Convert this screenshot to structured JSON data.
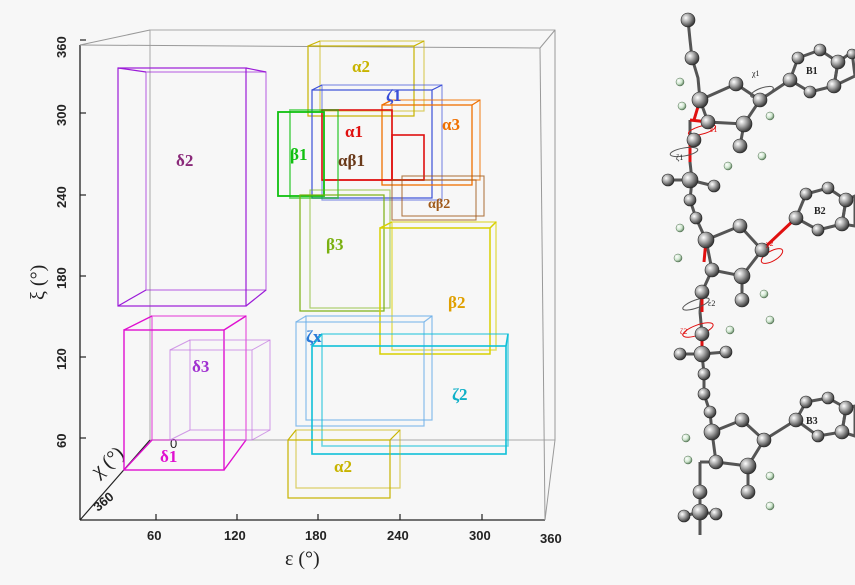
{
  "plot": {
    "x_axis_label": "ε (°)",
    "y_axis_label": "ξ (°)",
    "z_axis_label": "χ (°)",
    "x_ticks": [
      "60",
      "120",
      "180",
      "240",
      "300",
      "360"
    ],
    "y_ticks": [
      "60",
      "120",
      "180",
      "240",
      "300",
      "360"
    ],
    "z_ticks": [
      "0",
      "360"
    ]
  },
  "regions": [
    {
      "label": "α2",
      "color": "#c8b400"
    },
    {
      "label": "ζ1",
      "color": "#3a4fd8"
    },
    {
      "label": "α1",
      "color": "#e01010"
    },
    {
      "label": "α3",
      "color": "#f07000"
    },
    {
      "label": "αβ1",
      "color": "#6a3a1a"
    },
    {
      "label": "β1",
      "color": "#10b010"
    },
    {
      "label": "δ2",
      "color": "#9b1bd8"
    },
    {
      "label": "αβ2",
      "color": "#a05a1a"
    },
    {
      "label": "β3",
      "color": "#7ab010"
    },
    {
      "label": "β2",
      "color": "#e0a000"
    },
    {
      "label": "ζx",
      "color": "#2a7ad8"
    },
    {
      "label": "ζ2",
      "color": "#10b0c8"
    },
    {
      "label": "δ3",
      "color": "#a030d0"
    },
    {
      "label": "δ1",
      "color": "#e010d0"
    },
    {
      "label": "α2",
      "color": "#c8b400"
    }
  ],
  "molecule": {
    "base_labels": [
      "B1",
      "B2",
      "B3"
    ],
    "torsion_labels": [
      "χ1",
      "ε1",
      "ζ1",
      "χ2",
      "ε2",
      "ζ2"
    ]
  }
}
